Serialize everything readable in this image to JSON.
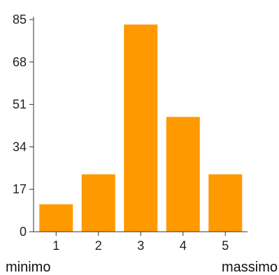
{
  "chart_data": {
    "type": "bar",
    "categories": [
      "1",
      "2",
      "3",
      "4",
      "5"
    ],
    "values": [
      11,
      23,
      83,
      46,
      23
    ],
    "yticks": [
      "0",
      "17",
      "34",
      "51",
      "68",
      "85"
    ],
    "ylim": [
      0,
      85
    ],
    "grid": false,
    "bar_color": "#ff9900",
    "axis_color": "#333333",
    "x_end_labels": {
      "left": "minimo",
      "right": "massimo"
    }
  }
}
